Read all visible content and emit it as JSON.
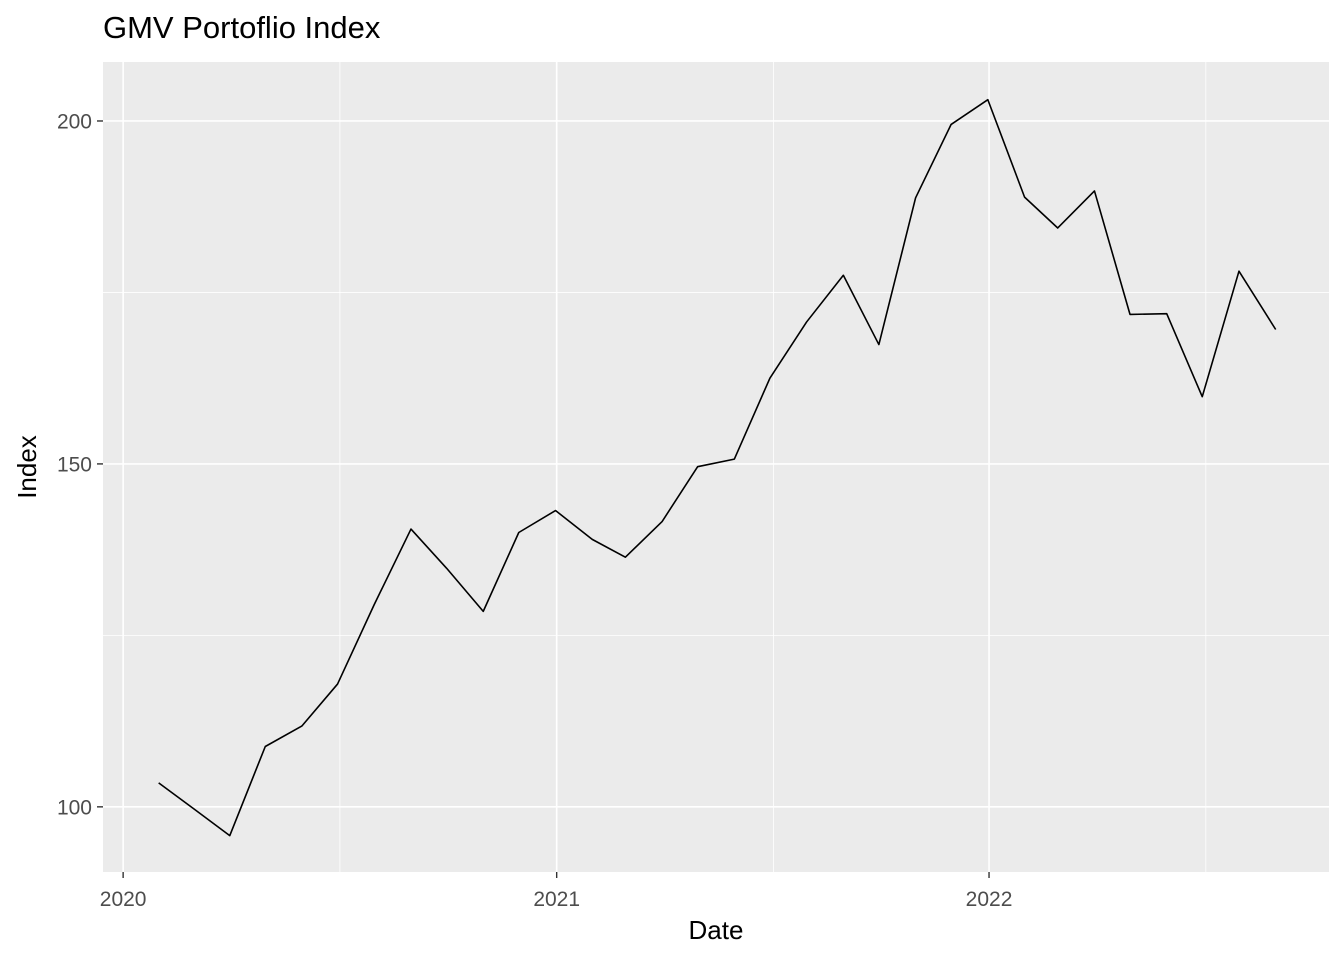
{
  "chart_data": {
    "type": "line",
    "title": "GMV Portoflio Index",
    "xlabel": "Date",
    "ylabel": "Index",
    "x_ticks": [
      {
        "date": "2020-01-01",
        "label": "2020"
      },
      {
        "date": "2021-01-01",
        "label": "2021"
      },
      {
        "date": "2022-01-01",
        "label": "2022"
      }
    ],
    "y_ticks": [
      100,
      150,
      200
    ],
    "xlim": [
      "2019-12-15",
      "2022-10-15"
    ],
    "ylim": [
      90.5,
      208.6
    ],
    "grid": true,
    "line_color": "#000000",
    "panel_background": "#ebebeb",
    "grid_color": "#ffffff",
    "series": [
      {
        "x": [
          "2020-01-31",
          "2020-02-29",
          "2020-03-31",
          "2020-04-30",
          "2020-05-31",
          "2020-06-30",
          "2020-07-31",
          "2020-08-31",
          "2020-09-30",
          "2020-10-31",
          "2020-11-30",
          "2020-12-31",
          "2021-01-31",
          "2021-02-28",
          "2021-03-31",
          "2021-04-30",
          "2021-05-31",
          "2021-06-30",
          "2021-07-31",
          "2021-08-31",
          "2021-09-30",
          "2021-10-31",
          "2021-11-30",
          "2021-12-31",
          "2022-01-31",
          "2022-02-28",
          "2022-03-31",
          "2022-04-30",
          "2022-05-31",
          "2022-06-30",
          "2022-07-31",
          "2022-08-31"
        ],
        "values": [
          103.5,
          99.8,
          95.8,
          108.8,
          111.8,
          117.9,
          129.5,
          140.5,
          134.8,
          128.5,
          140.0,
          143.2,
          139.0,
          136.4,
          141.6,
          149.6,
          150.7,
          162.5,
          170.7,
          177.5,
          167.4,
          188.8,
          199.5,
          203.1,
          188.9,
          184.4,
          189.8,
          171.8,
          171.9,
          159.8,
          178.1,
          169.6
        ]
      }
    ]
  }
}
